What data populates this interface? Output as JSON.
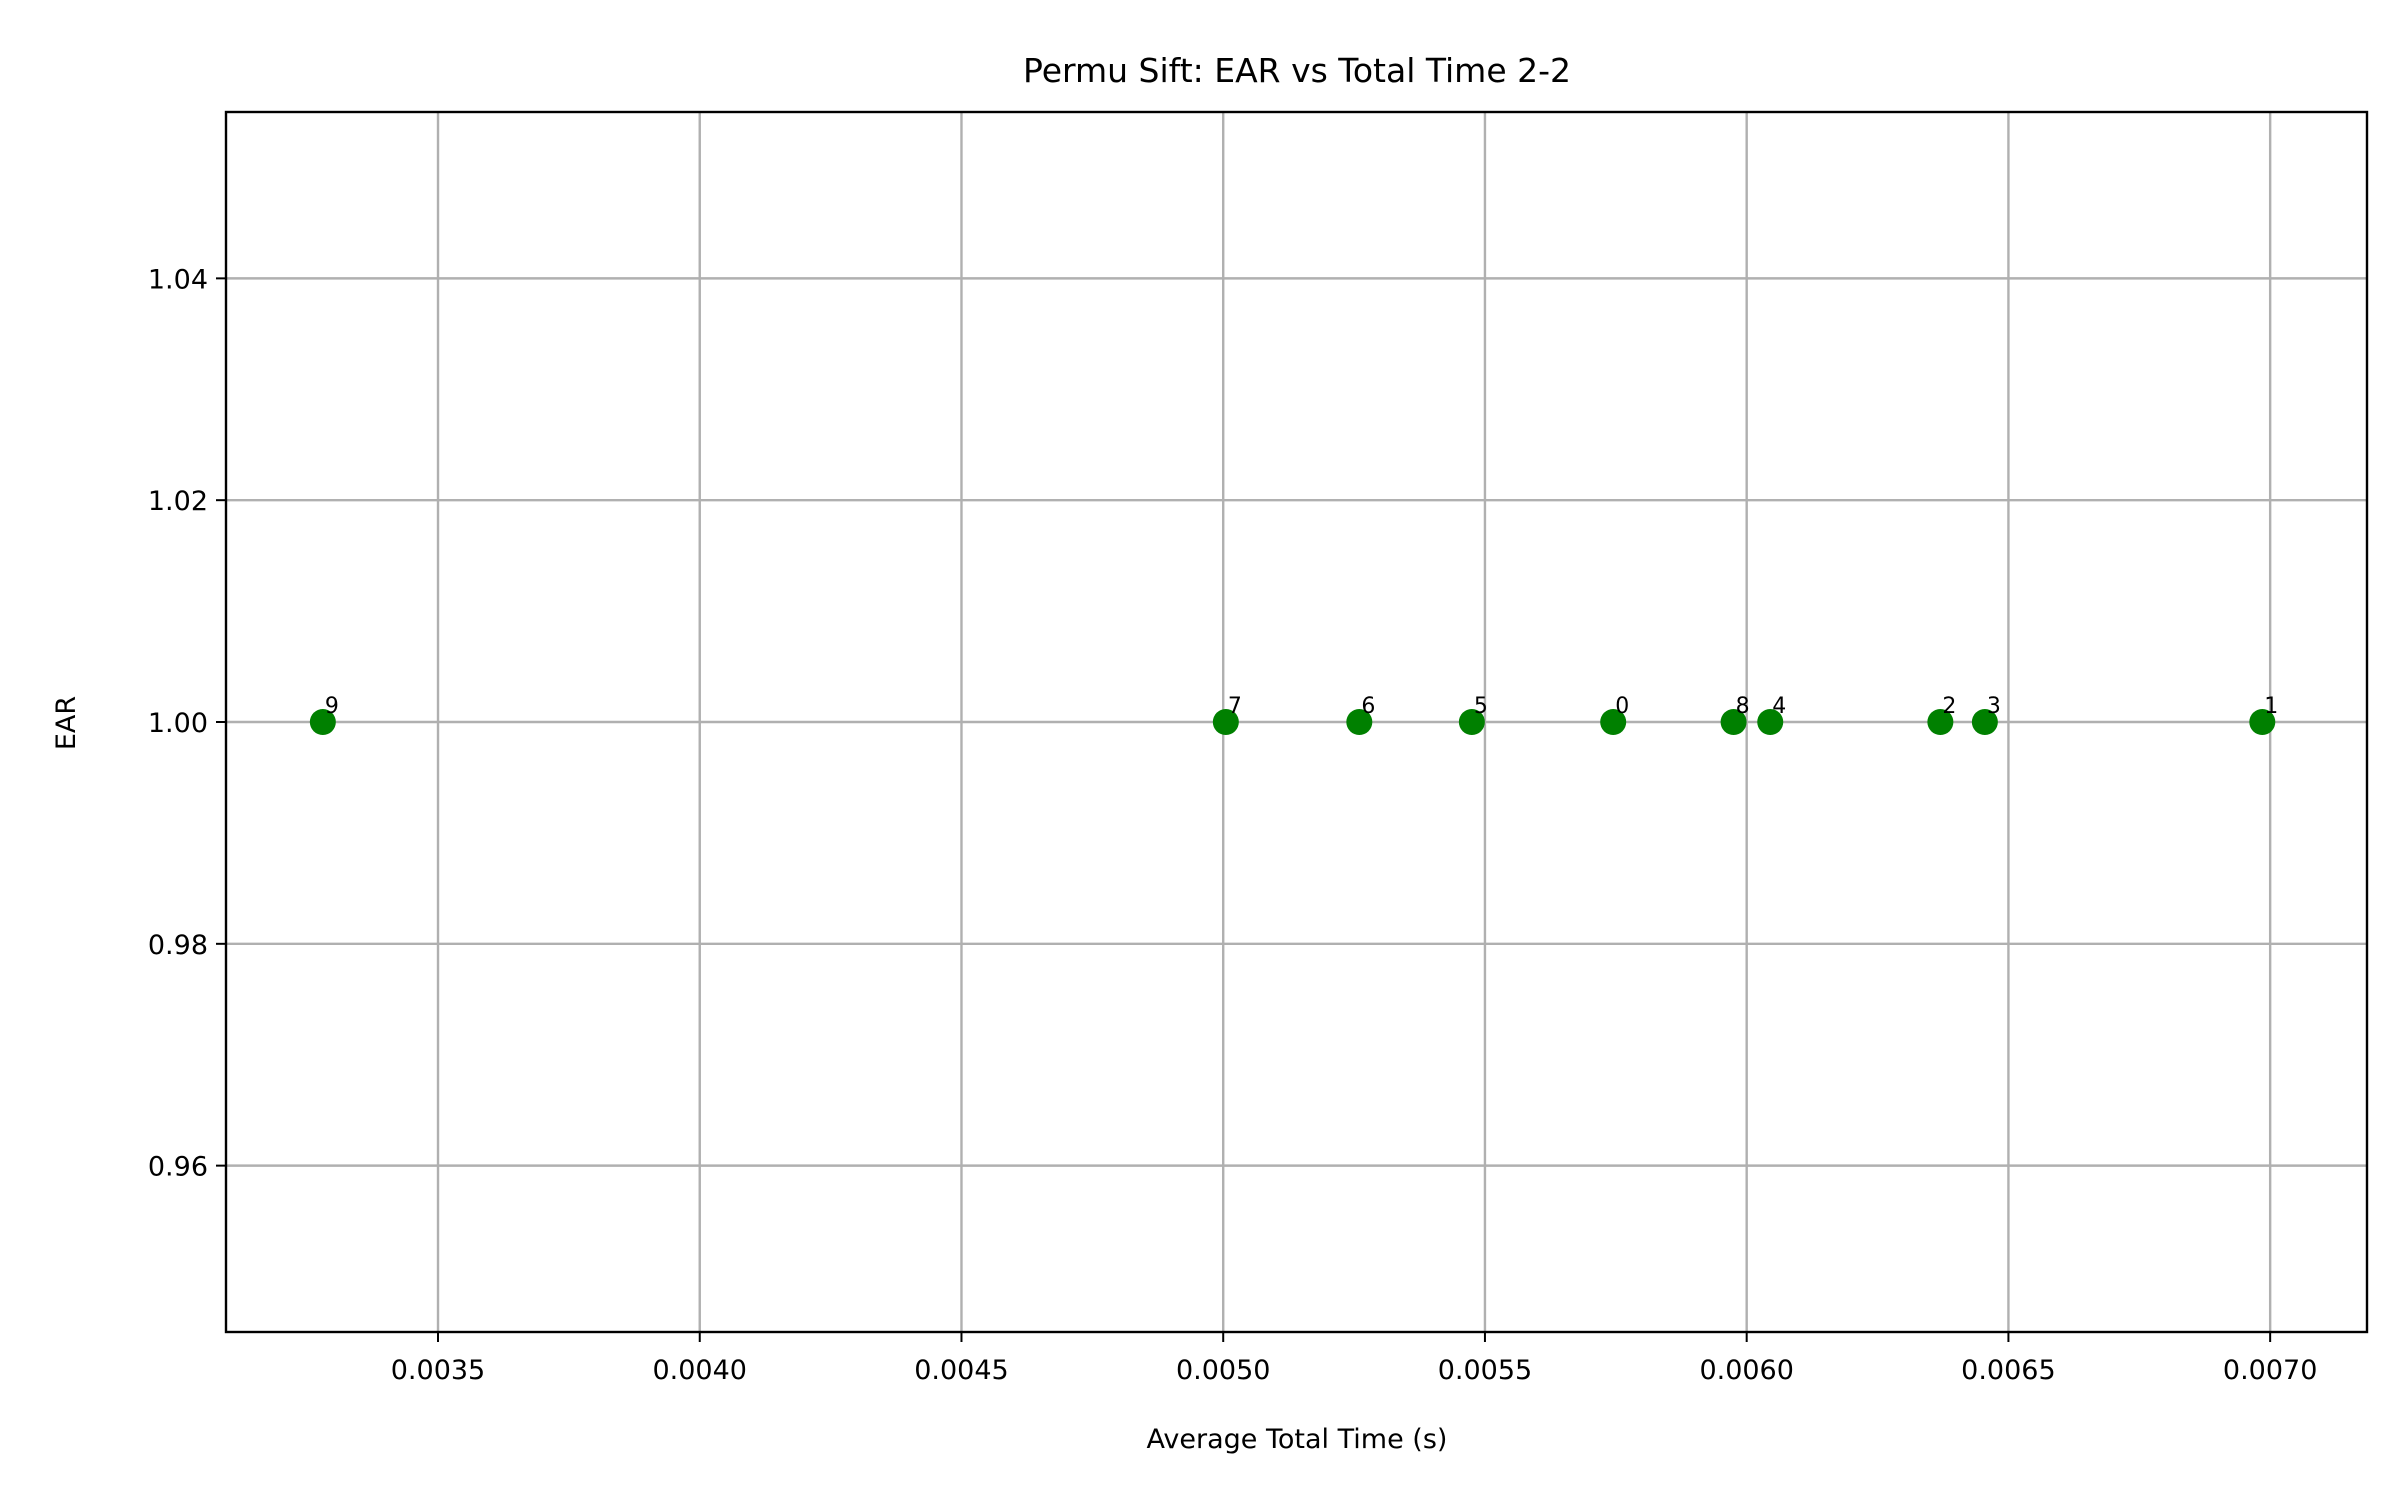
{
  "chart_data": {
    "type": "scatter",
    "title": "Permu Sift: EAR vs Total Time 2-2",
    "xlabel": "Average Total Time (s)",
    "ylabel": "EAR",
    "xlim": [
      0.003095,
      0.007185
    ],
    "ylim": [
      0.945,
      1.055
    ],
    "xticks": [
      0.0035,
      0.004,
      0.0045,
      0.005,
      0.0055,
      0.006,
      0.0065,
      0.007
    ],
    "xtick_labels": [
      "0.0035",
      "0.0040",
      "0.0045",
      "0.0050",
      "0.0055",
      "0.0060",
      "0.0065",
      "0.0070"
    ],
    "yticks": [
      0.96,
      0.98,
      1.0,
      1.02,
      1.04
    ],
    "ytick_labels": [
      "0.96",
      "0.98",
      "1.00",
      "1.02",
      "1.04"
    ],
    "grid": true,
    "marker_color": "#008000",
    "points": [
      {
        "label": "9",
        "x": 0.00328,
        "y": 1.0
      },
      {
        "label": "7",
        "x": 0.005005,
        "y": 1.0
      },
      {
        "label": "6",
        "x": 0.00526,
        "y": 1.0
      },
      {
        "label": "5",
        "x": 0.005475,
        "y": 1.0
      },
      {
        "label": "0",
        "x": 0.005745,
        "y": 1.0
      },
      {
        "label": "8",
        "x": 0.005975,
        "y": 1.0
      },
      {
        "label": "4",
        "x": 0.006045,
        "y": 1.0
      },
      {
        "label": "2",
        "x": 0.00637,
        "y": 1.0
      },
      {
        "label": "3",
        "x": 0.006455,
        "y": 1.0
      },
      {
        "label": "1",
        "x": 0.006985,
        "y": 1.0
      }
    ]
  }
}
